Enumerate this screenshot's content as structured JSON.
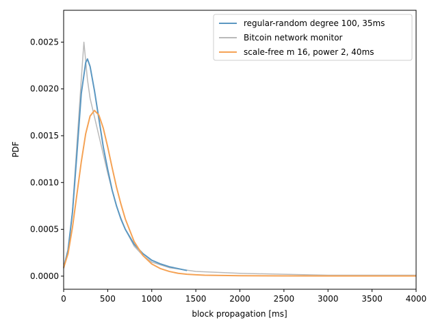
{
  "chart_data": {
    "type": "line",
    "xlabel": "block propagation [ms]",
    "ylabel": "PDF",
    "xlim": [
      0,
      4000
    ],
    "ylim": [
      -0.00014,
      0.00284
    ],
    "xticks": [
      0,
      500,
      1000,
      1500,
      2000,
      2500,
      3000,
      3500,
      4000
    ],
    "xtick_labels": [
      "0",
      "500",
      "1000",
      "1500",
      "2000",
      "2500",
      "3000",
      "3500",
      "4000"
    ],
    "yticks": [
      0.0,
      0.0005,
      0.001,
      0.0015,
      0.002,
      0.0025
    ],
    "ytick_labels": [
      "0.0000",
      "0.0005",
      "0.0010",
      "0.0015",
      "0.0020",
      "0.0025"
    ],
    "grid": false,
    "legend_position": "top-right",
    "series": [
      {
        "name": "regular-random degree 100, 35ms",
        "color": "#5b97c1",
        "x": [
          0,
          50,
          100,
          150,
          200,
          250,
          270,
          300,
          350,
          400,
          450,
          500,
          550,
          600,
          650,
          700,
          800,
          900,
          1000,
          1100,
          1200,
          1300,
          1400
        ],
        "y": [
          9e-05,
          0.00028,
          0.00068,
          0.0013,
          0.00195,
          0.00228,
          0.00232,
          0.00224,
          0.00198,
          0.00168,
          0.00138,
          0.00114,
          0.00092,
          0.00075,
          0.00061,
          0.0005,
          0.00034,
          0.00024,
          0.00017,
          0.00013,
          0.0001,
          8e-05,
          6e-05
        ]
      },
      {
        "name": "Bitcoin network monitor",
        "color": "#b9b9b9",
        "x": [
          0,
          50,
          100,
          150,
          200,
          230,
          250,
          270,
          300,
          350,
          400,
          450,
          500,
          550,
          600,
          650,
          700,
          800,
          900,
          1000,
          1200,
          1500,
          2000,
          2500,
          3000,
          3500,
          4000
        ],
        "y": [
          8e-05,
          0.00025,
          0.0007,
          0.0014,
          0.0021,
          0.0025,
          0.0023,
          0.0021,
          0.0019,
          0.0017,
          0.0015,
          0.0013,
          0.0011,
          0.00092,
          0.00075,
          0.00062,
          0.0005,
          0.00032,
          0.00022,
          0.00015,
          9e-05,
          5e-05,
          3e-05,
          2e-05,
          1e-05,
          1e-05,
          1e-05
        ]
      },
      {
        "name": "scale-free m 16, power 2, 40ms",
        "color": "#f5a254",
        "x": [
          0,
          50,
          100,
          150,
          200,
          250,
          300,
          350,
          400,
          450,
          500,
          550,
          600,
          650,
          700,
          800,
          900,
          1000,
          1100,
          1200,
          1300,
          1400,
          1500,
          1600,
          1800,
          2000,
          2500,
          3000,
          3500,
          4000
        ],
        "y": [
          9e-05,
          0.00024,
          0.00052,
          0.00087,
          0.00122,
          0.00152,
          0.00171,
          0.00177,
          0.00172,
          0.00158,
          0.00138,
          0.00116,
          0.00095,
          0.00077,
          0.00061,
          0.00037,
          0.00022,
          0.00013,
          8e-05,
          5e-05,
          3e-05,
          2e-05,
          1.5e-05,
          1e-05,
          7e-06,
          5e-06,
          3e-06,
          2e-06,
          2e-06,
          2e-06
        ]
      }
    ]
  }
}
